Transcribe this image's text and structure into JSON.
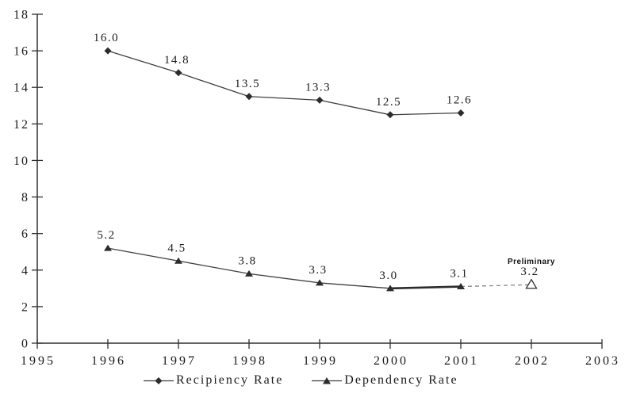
{
  "chart_data": {
    "type": "line",
    "title": "",
    "xlabel": "",
    "ylabel": "",
    "xlim": [
      1995,
      2003
    ],
    "ylim": [
      0,
      18
    ],
    "xticks": [
      1995,
      1996,
      1997,
      1998,
      1999,
      2000,
      2001,
      2002,
      2003
    ],
    "yticks": [
      0,
      2,
      4,
      6,
      8,
      10,
      12,
      14,
      16,
      18
    ],
    "grid": false,
    "legend_position": "bottom-center",
    "colors": {
      "axis": "#2f2f2f",
      "line": "#3f3f3f",
      "marker": "#2c2c2c",
      "dashed": "#858585",
      "text": "#1b1b1b",
      "background": "#ffffff"
    },
    "series": [
      {
        "name": "Recipiency Rate",
        "marker": "diamond",
        "points": [
          {
            "x": 1996,
            "y": 16.0,
            "label": "16.0"
          },
          {
            "x": 1997,
            "y": 14.8,
            "label": "14.8"
          },
          {
            "x": 1998,
            "y": 13.5,
            "label": "13.5"
          },
          {
            "x": 1999,
            "y": 13.3,
            "label": "13.3"
          },
          {
            "x": 2000,
            "y": 12.5,
            "label": "12.5"
          },
          {
            "x": 2001,
            "y": 12.6,
            "label": "12.6"
          }
        ]
      },
      {
        "name": "Dependency Rate",
        "marker": "triangle",
        "bold_segment": [
          2000,
          2001
        ],
        "points": [
          {
            "x": 1996,
            "y": 5.2,
            "label": "5.2"
          },
          {
            "x": 1997,
            "y": 4.5,
            "label": "4.5"
          },
          {
            "x": 1998,
            "y": 3.8,
            "label": "3.8"
          },
          {
            "x": 1999,
            "y": 3.3,
            "label": "3.3"
          },
          {
            "x": 2000,
            "y": 3.0,
            "label": "3.0"
          },
          {
            "x": 2001,
            "y": 3.1,
            "label": "3.1"
          },
          {
            "x": 2002,
            "y": 3.2,
            "label": "3.2",
            "annotation": "Preliminary",
            "open_marker": true,
            "dashed_from_prev": true
          }
        ]
      }
    ]
  }
}
